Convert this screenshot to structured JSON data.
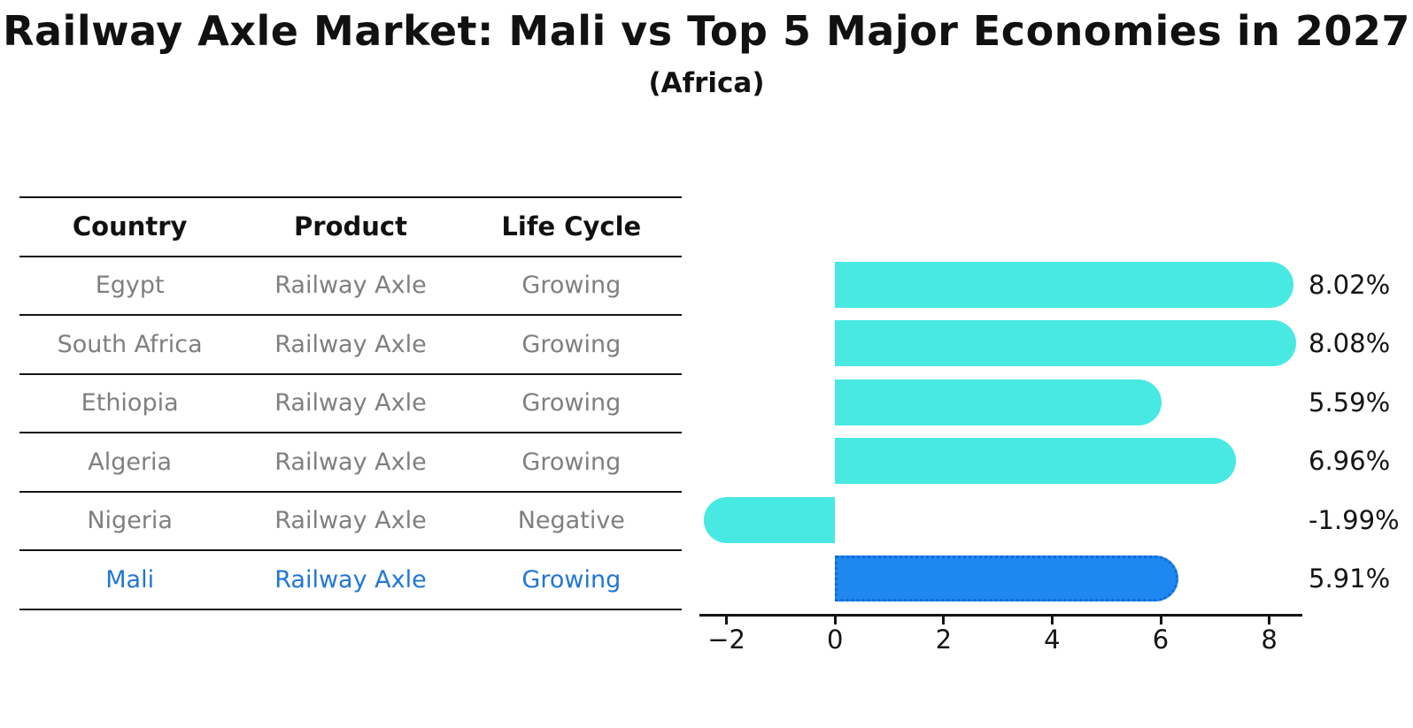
{
  "title": "Railway Axle Market: Mali vs Top 5 Major Economies in 2027",
  "subtitle": "(Africa)",
  "table": {
    "headers": [
      "Country",
      "Product",
      "Life Cycle"
    ],
    "rows": [
      {
        "country": "Egypt",
        "product": "Railway Axle",
        "life_cycle": "Growing",
        "highlight": false
      },
      {
        "country": "South Africa",
        "product": "Railway Axle",
        "life_cycle": "Growing",
        "highlight": false
      },
      {
        "country": "Ethiopia",
        "product": "Railway Axle",
        "life_cycle": "Growing",
        "highlight": false
      },
      {
        "country": "Algeria",
        "product": "Railway Axle",
        "life_cycle": "Growing",
        "highlight": false
      },
      {
        "country": "Nigeria",
        "product": "Railway Axle",
        "life_cycle": "Negative",
        "highlight": false
      },
      {
        "country": "Mali",
        "product": "Railway Axle",
        "life_cycle": "Growing",
        "highlight": true
      }
    ]
  },
  "chart_data": {
    "type": "bar",
    "orientation": "horizontal",
    "categories": [
      "Egypt",
      "South Africa",
      "Ethiopia",
      "Algeria",
      "Nigeria",
      "Mali"
    ],
    "values": [
      8.02,
      8.08,
      5.59,
      6.96,
      -1.99,
      5.91
    ],
    "value_labels": [
      "8.02%",
      "8.08%",
      "5.59%",
      "6.96%",
      "-1.99%",
      "5.91%"
    ],
    "x_ticks": [
      -2,
      0,
      2,
      4,
      6,
      8
    ],
    "xlim": [
      -2.51,
      8.6
    ],
    "grid": false,
    "legend": "none",
    "highlight_index": 5,
    "bar_color": "#47e9e2",
    "highlight_bar_color": "#1e87f0",
    "highlight_border_color": "#0f6bd8",
    "highlight_text_color": "#2176d6",
    "axis_color": "#141414",
    "text_color": "#7f7f7f"
  }
}
